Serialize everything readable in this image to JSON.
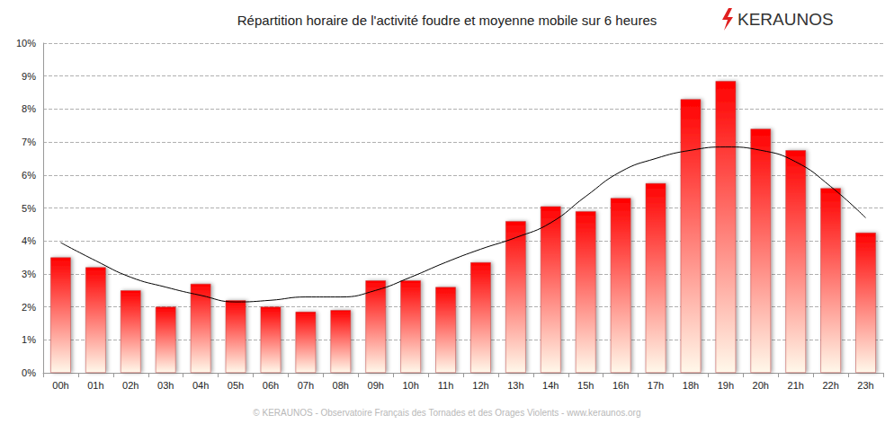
{
  "chart_data": {
    "type": "bar",
    "title": "Répartition horaire de l'activité foudre et moyenne mobile sur 6 heures",
    "annotations": [
      "KERAUNOS",
      "© KERAUNOS - Observatoire Français des Tornades et des Orages Violents - www.keraunos.org"
    ],
    "categories": [
      "00h",
      "01h",
      "02h",
      "03h",
      "04h",
      "05h",
      "06h",
      "07h",
      "08h",
      "09h",
      "10h",
      "11h",
      "12h",
      "13h",
      "14h",
      "15h",
      "16h",
      "17h",
      "18h",
      "19h",
      "20h",
      "21h",
      "22h",
      "23h"
    ],
    "series": [
      {
        "type": "bar",
        "color": "#ff0000",
        "values": [
          3.5,
          3.2,
          2.5,
          2.0,
          2.7,
          2.2,
          2.0,
          1.85,
          1.9,
          2.8,
          2.8,
          2.6,
          3.35,
          4.6,
          5.05,
          4.9,
          5.3,
          5.75,
          8.3,
          8.85,
          7.4,
          6.75,
          5.6,
          4.25
        ]
      },
      {
        "type": "line",
        "color": "#000000",
        "line_style": "smooth",
        "values": [
          3.95,
          3.4,
          2.9,
          2.6,
          2.35,
          2.15,
          2.2,
          2.3,
          2.3,
          2.5,
          2.9,
          3.35,
          3.75,
          4.1,
          4.55,
          5.35,
          6.1,
          6.5,
          6.75,
          6.85,
          6.75,
          6.4,
          5.65,
          4.7
        ]
      }
    ],
    "ylim": [
      0,
      10
    ],
    "yticks": [
      {
        "value": 0,
        "label": "0%"
      },
      {
        "value": 1,
        "label": "1%"
      },
      {
        "value": 2,
        "label": "2%"
      },
      {
        "value": 3,
        "label": "3%"
      },
      {
        "value": 4,
        "label": "4%"
      },
      {
        "value": 5,
        "label": "5%"
      },
      {
        "value": 6,
        "label": "6%"
      },
      {
        "value": 7,
        "label": "7%"
      },
      {
        "value": 8,
        "label": "8%"
      },
      {
        "value": 9,
        "label": "9%"
      },
      {
        "value": 10,
        "label": "10%"
      }
    ],
    "grid": true
  }
}
